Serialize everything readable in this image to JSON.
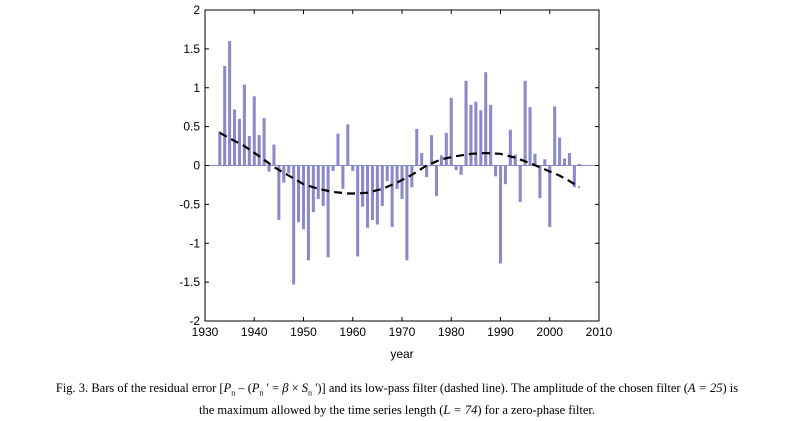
{
  "chart_data": {
    "type": "bar",
    "xlabel": "year",
    "ylabel": "",
    "xlim": [
      1930,
      2010
    ],
    "ylim": [
      -2,
      2
    ],
    "xticks": [
      1930,
      1940,
      1950,
      1960,
      1970,
      1980,
      1990,
      2000,
      2010
    ],
    "yticks": [
      -2,
      -1.5,
      -1,
      -0.5,
      0,
      0.5,
      1,
      1.5,
      2
    ],
    "bar_color": "#8a8ac8",
    "series": [
      {
        "name": "Residual error",
        "years": [
          1933,
          1934,
          1935,
          1936,
          1937,
          1938,
          1939,
          1940,
          1941,
          1942,
          1943,
          1944,
          1945,
          1946,
          1947,
          1948,
          1949,
          1950,
          1951,
          1952,
          1953,
          1954,
          1955,
          1956,
          1957,
          1958,
          1959,
          1960,
          1961,
          1962,
          1963,
          1964,
          1965,
          1966,
          1967,
          1968,
          1969,
          1970,
          1971,
          1972,
          1973,
          1974,
          1975,
          1976,
          1977,
          1978,
          1979,
          1980,
          1981,
          1982,
          1983,
          1984,
          1985,
          1986,
          1987,
          1988,
          1989,
          1990,
          1991,
          1992,
          1993,
          1994,
          1995,
          1996,
          1997,
          1998,
          1999,
          2000,
          2001,
          2002,
          2003,
          2004,
          2005,
          2006
        ],
        "values": [
          0.44,
          1.28,
          1.6,
          0.72,
          0.6,
          1.04,
          0.38,
          0.89,
          0.39,
          0.61,
          -0.08,
          0.27,
          -0.7,
          -0.22,
          -0.1,
          -1.53,
          -0.73,
          -0.82,
          -1.22,
          -0.6,
          -0.43,
          -0.52,
          -1.18,
          -0.07,
          0.41,
          -0.3,
          0.53,
          -0.07,
          -1.17,
          -0.53,
          -0.8,
          -0.7,
          -0.76,
          -0.52,
          -0.2,
          -0.79,
          -0.3,
          -0.43,
          -1.22,
          -0.28,
          0.47,
          0.16,
          -0.15,
          0.39,
          -0.39,
          0.13,
          0.42,
          0.87,
          -0.06,
          -0.12,
          1.09,
          0.78,
          0.82,
          0.71,
          1.2,
          0.78,
          -0.14,
          -1.26,
          -0.24,
          0.46,
          0.14,
          -0.47,
          1.09,
          0.75,
          0.15,
          -0.42,
          0.08,
          -0.79,
          0.76,
          0.36,
          0.09,
          0.16,
          -0.28,
          0.02
        ]
      },
      {
        "name": "Low-pass filter",
        "style": "dashed",
        "x": [
          1933,
          1935,
          1938,
          1941,
          1944,
          1947,
          1950,
          1953,
          1956,
          1959,
          1961,
          1963,
          1966,
          1969,
          1972,
          1975,
          1978,
          1981,
          1984,
          1987,
          1990,
          1993,
          1996,
          1999,
          2002,
          2004,
          2006
        ],
        "y": [
          0.42,
          0.35,
          0.25,
          0.12,
          -0.02,
          -0.13,
          -0.24,
          -0.3,
          -0.34,
          -0.36,
          -0.36,
          -0.35,
          -0.3,
          -0.22,
          -0.12,
          0.0,
          0.08,
          0.12,
          0.15,
          0.16,
          0.15,
          0.1,
          0.03,
          -0.05,
          -0.13,
          -0.2,
          -0.28
        ]
      }
    ]
  },
  "caption": {
    "fig": "Fig. 3.",
    "line1_a": " Bars of the residual error [",
    "p": "P",
    "n": "n",
    "dash": " – (",
    "prime_eq": " ' = ",
    "beta": "β",
    "times": " × ",
    "s": "S",
    "close": " ')] and its low-pass filter (dashed line). The amplitude of the chosen filter (",
    "a": "A = 25",
    "line1_b": ") is",
    "line2_a": "the maximum allowed by the time series length (",
    "l": "L = 74",
    "line2_b": ") for a zero-phase filter."
  }
}
